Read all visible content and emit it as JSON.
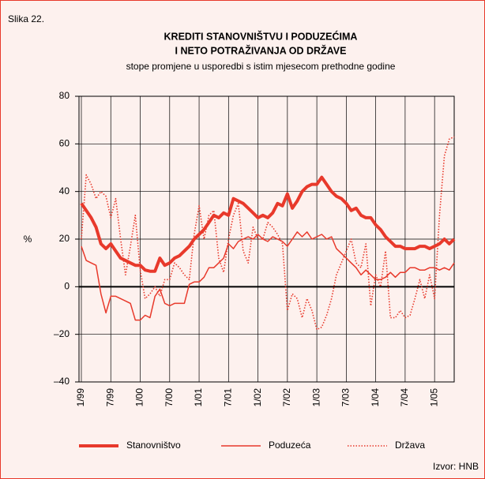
{
  "figure_label": "Slika 22.",
  "chart_data": {
    "type": "line",
    "title": [
      "KREDITI STANOVNIŠTVU I PODUZEĆIMA",
      "I NETO POTRAŽIVANJA OD DRŽAVE"
    ],
    "subtitle": "stope promjene u usporedbi s istim mjesecom prethodne godine",
    "ylabel": "%",
    "source": "Izvor: HNB",
    "categories": [
      "1/99",
      null,
      null,
      null,
      null,
      null,
      "7/99",
      null,
      null,
      null,
      null,
      null,
      "1/00",
      null,
      null,
      null,
      null,
      null,
      "7/00",
      null,
      null,
      null,
      null,
      null,
      "1/01",
      null,
      null,
      null,
      null,
      null,
      "7/01",
      null,
      null,
      null,
      null,
      null,
      "1/02",
      null,
      null,
      null,
      null,
      null,
      "7/02",
      null,
      null,
      null,
      null,
      null,
      "1/03",
      null,
      null,
      null,
      null,
      null,
      "7/03",
      null,
      null,
      null,
      null,
      null,
      "1/04",
      null,
      null,
      null,
      null,
      null,
      "7/04",
      null,
      null,
      null,
      null,
      null,
      "1/05",
      null,
      null,
      null,
      null
    ],
    "ylim": [
      -40,
      80
    ],
    "yticks": [
      {
        "value": -40,
        "label": "–40"
      },
      {
        "value": -20,
        "label": "–20"
      },
      0,
      20,
      40,
      60,
      80
    ],
    "grid": true,
    "series": [
      {
        "name": "Stanovništvo",
        "color": "#e8392b",
        "style": "thick",
        "values": [
          35,
          32,
          29,
          25,
          18,
          16,
          18,
          15,
          12,
          11,
          10,
          9,
          9,
          7,
          6.5,
          6.5,
          12,
          9,
          10,
          12,
          13,
          15,
          17,
          20,
          22,
          24,
          27,
          30,
          29,
          31,
          30,
          37,
          36,
          35,
          33,
          31,
          29,
          30,
          29,
          31,
          35,
          34,
          39,
          33,
          36,
          40,
          42,
          43,
          43,
          46,
          43,
          40,
          38,
          37,
          35,
          32,
          33,
          30,
          29,
          29,
          26,
          24,
          21,
          19,
          17,
          17,
          16,
          16,
          16,
          17,
          17,
          16,
          17,
          18,
          20,
          18,
          20
        ]
      },
      {
        "name": "Poduzeća",
        "color": "#e8392b",
        "style": "thin",
        "values": [
          17,
          11,
          10,
          9,
          -3,
          -11,
          -4,
          -4,
          -5,
          -6,
          -7,
          -14,
          -14,
          -12,
          -13,
          -4,
          -1,
          -7,
          -8,
          -7,
          -7,
          -7,
          1,
          2,
          2,
          4,
          8,
          8,
          10,
          12,
          18,
          16,
          19,
          20,
          21,
          20,
          22,
          20,
          19,
          21,
          20,
          19,
          17,
          20,
          23,
          21,
          23,
          20,
          21,
          22,
          20,
          21,
          16,
          14,
          12,
          10,
          8,
          5,
          7,
          5,
          3,
          3,
          4,
          6,
          4,
          6,
          6,
          8,
          8,
          7,
          7,
          8,
          8,
          7,
          8,
          7,
          10
        ]
      },
      {
        "name": "Država",
        "color": "#e8392b",
        "style": "dotted",
        "values": [
          20,
          47,
          43,
          37,
          40,
          38,
          29,
          37,
          20,
          5,
          17,
          30,
          7,
          -5,
          -3,
          0,
          -4,
          3,
          3,
          10,
          8,
          5,
          3,
          22,
          34,
          20,
          30,
          32,
          12,
          6,
          20,
          30,
          35,
          15,
          10,
          25,
          20,
          20,
          27,
          25,
          22,
          18,
          -10,
          -3,
          -5,
          -13,
          -5,
          -10,
          -18,
          -17,
          -12,
          -5,
          5,
          10,
          15,
          20,
          10,
          8,
          18,
          -8,
          5,
          0,
          15,
          -13,
          -13,
          -10,
          -13,
          -12,
          -5,
          3,
          -5,
          5,
          -5,
          30,
          55,
          62,
          63
        ]
      }
    ]
  }
}
